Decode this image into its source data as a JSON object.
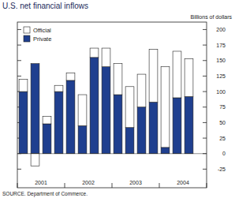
{
  "chart_data": {
    "type": "bar",
    "title": "U.S. net financial inflows",
    "subtitle": "Billions of dollars",
    "source": "SOURCE. Department of Commerce.",
    "categories": [
      null,
      "2001",
      null,
      null,
      null,
      "2002",
      null,
      null,
      null,
      "2003",
      null,
      null,
      null,
      "2004",
      null,
      null
    ],
    "series": [
      {
        "name": "Private",
        "color": "#1f3f8f",
        "values": [
          100,
          145,
          48,
          100,
          118,
          45,
          155,
          140,
          95,
          42,
          75,
          83,
          10,
          90,
          92,
          null
        ]
      },
      {
        "name": "Official",
        "color": "#ffffff",
        "values": [
          20,
          -20,
          12,
          10,
          12,
          50,
          15,
          30,
          50,
          66,
          53,
          85,
          130,
          75,
          61,
          null
        ]
      }
    ],
    "stacked": true,
    "legend": "upper left",
    "ylim": [
      -55,
      212
    ],
    "yticks": [
      -25,
      0,
      25,
      50,
      75,
      100,
      125,
      150,
      175,
      200
    ],
    "grid": false
  }
}
